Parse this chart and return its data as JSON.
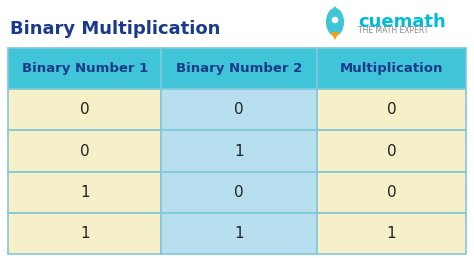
{
  "title": "Binary Multiplication",
  "title_color": "#1a3a8c",
  "title_fontsize": 13,
  "bg_color": "#ffffff",
  "headers": [
    "Binary Number 1",
    "Binary Number 2",
    "Multiplication"
  ],
  "header_bg": "#40c4d8",
  "header_text_color": "#1a3a8c",
  "header_fontsize": 9.5,
  "col1_values": [
    "0",
    "0",
    "1",
    "1"
  ],
  "col2_values": [
    "0",
    "1",
    "0",
    "1"
  ],
  "col3_values": [
    "0",
    "0",
    "0",
    "1"
  ],
  "col1_bg": "#f5f0c8",
  "col2_bg": "#b8dff0",
  "col3_bg": "#f5f0c8",
  "data_fontsize": 11,
  "data_text_color": "#222222",
  "border_color": "#7ec8d8",
  "cuemath_text": "cuemath",
  "cuemath_subtext": "THE MATH EXPERT",
  "cuemath_color": "#00bcd4",
  "cuemath_subcolor": "#888888",
  "rocket_body_color": "#40c4d8",
  "rocket_flame_color": "#ffa000"
}
